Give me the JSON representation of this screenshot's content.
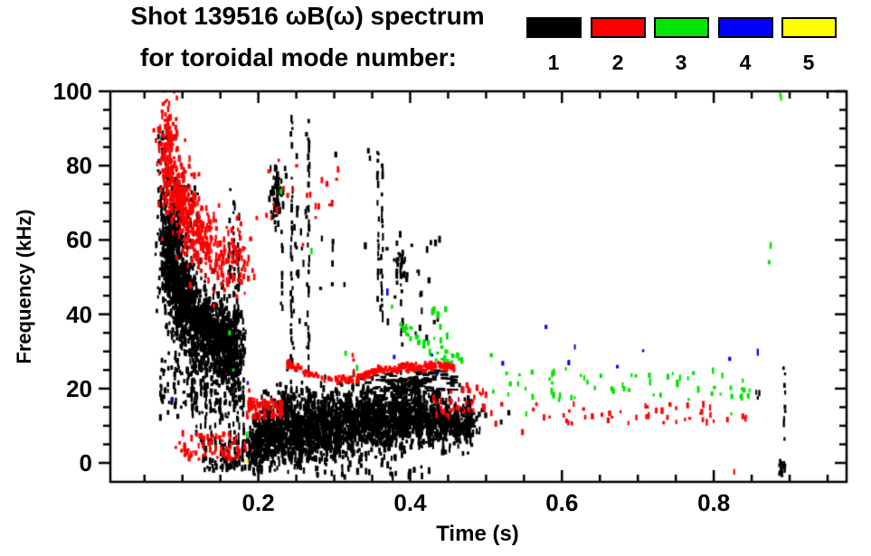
{
  "title": {
    "line1": "Shot 139516 ωB(ω) spectrum",
    "line2": "for toroidal mode number:"
  },
  "legend": {
    "items": [
      {
        "label": "1",
        "color": "#000000"
      },
      {
        "label": "2",
        "color": "#ff0000"
      },
      {
        "label": "3",
        "color": "#00e400"
      },
      {
        "label": "4",
        "color": "#0000ff"
      },
      {
        "label": "5",
        "color": "#ffff00"
      }
    ]
  },
  "axes": {
    "xlabel": "Time (s)",
    "ylabel": "Frequency (kHz)"
  },
  "chart_data": {
    "type": "scatter",
    "title": "Shot 139516 ωB(ω) spectrum for toroidal mode number 1-5",
    "xlabel": "Time (s)",
    "ylabel": "Frequency (kHz)",
    "x_range": [
      0.005,
      0.975
    ],
    "y_range": [
      -5.1,
      100
    ],
    "x_major": [
      {
        "t": 0.2,
        "label": "0.2"
      },
      {
        "t": 0.4,
        "label": "0.4"
      },
      {
        "t": 0.6,
        "label": "0.6"
      },
      {
        "t": 0.8,
        "label": "0.8"
      }
    ],
    "y_major": [
      {
        "f": 0,
        "label": "0"
      },
      {
        "f": 20,
        "label": "20"
      },
      {
        "f": 40,
        "label": "40"
      },
      {
        "f": 60,
        "label": "60"
      },
      {
        "f": 80,
        "label": "80"
      },
      {
        "f": 100,
        "label": "100"
      }
    ],
    "x_minor_step": 0.05,
    "y_minor_step": 5,
    "grid": false,
    "legend_position": "top",
    "series": [
      {
        "mode": 1,
        "color": "#000000",
        "blobs": [
          {
            "t": 0.085,
            "f": 57,
            "st": 0.008,
            "sf": 7.0,
            "n": 420
          },
          {
            "t": 0.1,
            "f": 44,
            "st": 0.01,
            "sf": 6.0,
            "n": 380
          },
          {
            "t": 0.125,
            "f": 37,
            "st": 0.012,
            "sf": 5.5,
            "n": 380
          },
          {
            "t": 0.15,
            "f": 33,
            "st": 0.012,
            "sf": 5.0,
            "n": 300
          },
          {
            "t": 0.165,
            "f": 30,
            "st": 0.008,
            "sf": 6.0,
            "n": 200
          },
          {
            "t": 0.225,
            "f": 72,
            "st": 0.005,
            "sf": 4.0,
            "n": 70
          },
          {
            "t": 0.387,
            "f": 52,
            "st": 0.004,
            "sf": 2.5,
            "n": 25
          },
          {
            "t": 0.197,
            "f": 6.0,
            "st": 0.005,
            "sf": 3.5,
            "n": 140
          },
          {
            "t": 0.214,
            "f": 8.0,
            "st": 0.006,
            "sf": 4.0,
            "n": 170
          },
          {
            "t": 0.232,
            "f": 10.0,
            "st": 0.006,
            "sf": 4.5,
            "n": 190
          },
          {
            "t": 0.25,
            "f": 9.0,
            "st": 0.006,
            "sf": 4.5,
            "n": 180
          },
          {
            "t": 0.268,
            "f": 10.0,
            "st": 0.006,
            "sf": 4.5,
            "n": 180
          },
          {
            "t": 0.286,
            "f": 9.0,
            "st": 0.006,
            "sf": 4.0,
            "n": 170
          },
          {
            "t": 0.304,
            "f": 10.0,
            "st": 0.006,
            "sf": 4.5,
            "n": 180
          },
          {
            "t": 0.322,
            "f": 11.0,
            "st": 0.006,
            "sf": 4.0,
            "n": 170
          },
          {
            "t": 0.34,
            "f": 11.0,
            "st": 0.006,
            "sf": 4.0,
            "n": 170
          },
          {
            "t": 0.358,
            "f": 11.0,
            "st": 0.006,
            "sf": 3.8,
            "n": 160
          },
          {
            "t": 0.376,
            "f": 11.0,
            "st": 0.006,
            "sf": 3.8,
            "n": 160
          },
          {
            "t": 0.394,
            "f": 11.0,
            "st": 0.005,
            "sf": 3.5,
            "n": 150
          },
          {
            "t": 0.411,
            "f": 11.0,
            "st": 0.005,
            "sf": 3.2,
            "n": 140
          },
          {
            "t": 0.428,
            "f": 11.0,
            "st": 0.005,
            "sf": 3.0,
            "n": 130
          },
          {
            "t": 0.445,
            "f": 10.5,
            "st": 0.005,
            "sf": 3.0,
            "n": 130
          },
          {
            "t": 0.461,
            "f": 10.0,
            "st": 0.004,
            "sf": 2.6,
            "n": 110
          },
          {
            "t": 0.476,
            "f": 10.0,
            "st": 0.004,
            "sf": 2.4,
            "n": 100
          }
        ],
        "uniforms": [
          {
            "t0": 0.068,
            "t1": 0.082,
            "f0": 70,
            "f1": 90,
            "n": 35
          },
          {
            "t0": 0.07,
            "t1": 0.12,
            "f0": 58,
            "f1": 75,
            "n": 60
          },
          {
            "t0": 0.07,
            "t1": 0.18,
            "f0": 12,
            "f1": 30,
            "n": 150
          },
          {
            "t0": 0.125,
            "t1": 0.19,
            "f0": -2,
            "f1": 6,
            "n": 90
          },
          {
            "t0": 0.244,
            "t1": 0.27,
            "f0": 30,
            "f1": 90,
            "n": 25
          },
          {
            "t0": 0.28,
            "t1": 0.44,
            "f0": 33,
            "f1": 62,
            "n": 30
          },
          {
            "t0": 0.335,
            "t1": 0.415,
            "f0": 14,
            "f1": 24,
            "n": 110,
            "hdash": true
          },
          {
            "t0": 0.4,
            "t1": 0.46,
            "f0": 19,
            "f1": 25,
            "n": 50,
            "hdash": true
          },
          {
            "t0": 0.21,
            "t1": 0.48,
            "f0": 15,
            "f1": 22,
            "n": 70
          },
          {
            "t0": 0.195,
            "t1": 0.28,
            "f0": -2,
            "f1": 4,
            "n": 60
          },
          {
            "t0": 0.27,
            "t1": 0.43,
            "f0": -4.2,
            "f1": -0.5,
            "n": 28
          },
          {
            "t0": 0.477,
            "t1": 0.5,
            "f0": 8,
            "f1": 15,
            "n": 14
          },
          {
            "t0": 0.886,
            "t1": 0.894,
            "f0": -3.2,
            "f1": 0.2,
            "n": 16
          }
        ],
        "streaks": [
          {
            "t": 0.113,
            "f0": 8,
            "f1": 30
          },
          {
            "t": 0.119,
            "f0": 6,
            "f1": 28
          },
          {
            "t": 0.125,
            "f0": 5,
            "f1": 25
          },
          {
            "t": 0.131,
            "f0": 8,
            "f1": 22
          },
          {
            "t": 0.137,
            "f0": 4,
            "f1": 20
          },
          {
            "t": 0.144,
            "f0": 6,
            "f1": 18
          },
          {
            "t": 0.15,
            "f0": 3,
            "f1": 16
          },
          {
            "t": 0.162,
            "f0": 5,
            "f1": 75
          },
          {
            "t": 0.168,
            "f0": 3,
            "f1": 70
          },
          {
            "t": 0.174,
            "f0": 6,
            "f1": 68
          },
          {
            "t": 0.18,
            "f0": 2,
            "f1": 40
          },
          {
            "t": 0.231,
            "f0": 40,
            "f1": 64
          },
          {
            "t": 0.244,
            "f0": 2,
            "f1": 94
          },
          {
            "t": 0.266,
            "f0": 0,
            "f1": 92
          },
          {
            "t": 0.358,
            "f0": 40,
            "f1": 87
          },
          {
            "t": 0.363,
            "f0": 35,
            "f1": 80
          },
          {
            "t": 0.389,
            "f0": 1,
            "f1": 55
          },
          {
            "t": 0.893,
            "f0": 4,
            "f1": 26
          }
        ],
        "paths": [],
        "points": [
          [
            0.302,
            83
          ],
          [
            0.345,
            84
          ],
          [
            0.347,
            82
          ],
          [
            0.357,
            83.5
          ],
          [
            0.52,
            11
          ],
          [
            0.53,
            13.5
          ],
          [
            0.856,
            19
          ],
          [
            0.858,
            17.5
          ],
          [
            0.86,
            18.8
          ],
          [
            0.892,
            25.5
          ]
        ]
      },
      {
        "mode": 2,
        "color": "#ff0000",
        "blobs": [
          {
            "t": 0.08,
            "f": 84,
            "st": 0.006,
            "sf": 7.0,
            "n": 130
          },
          {
            "t": 0.092,
            "f": 74,
            "st": 0.007,
            "sf": 6.0,
            "n": 120
          },
          {
            "t": 0.105,
            "f": 67,
            "st": 0.008,
            "sf": 5.0,
            "n": 110
          },
          {
            "t": 0.125,
            "f": 60,
            "st": 0.01,
            "sf": 5.0,
            "n": 100
          },
          {
            "t": 0.15,
            "f": 55,
            "st": 0.012,
            "sf": 5.0,
            "n": 70
          },
          {
            "t": 0.175,
            "f": 56,
            "st": 0.01,
            "sf": 5.0,
            "n": 40
          }
        ],
        "uniforms": [
          {
            "t0": 0.09,
            "t1": 0.185,
            "f0": 1,
            "f1": 8,
            "n": 70
          },
          {
            "t0": 0.185,
            "t1": 0.232,
            "f0": 12,
            "f1": 17,
            "n": 80
          },
          {
            "t0": 0.195,
            "t1": 0.31,
            "f0": 55,
            "f1": 82,
            "n": 22
          },
          {
            "t0": 0.43,
            "t1": 0.5,
            "f0": 12,
            "f1": 21,
            "n": 40
          },
          {
            "t0": 0.5,
            "t1": 0.85,
            "f0": 10.5,
            "f1": 16,
            "n": 48
          }
        ],
        "streaks": [
          {
            "t": 0.188,
            "f0": 13,
            "f1": 19.5
          },
          {
            "t": 0.325,
            "f0": 22,
            "f1": 29
          }
        ],
        "paths": [
          {
            "pts": [
              [
                0.238,
                27
              ],
              [
                0.26,
                24.8
              ],
              [
                0.285,
                23
              ],
              [
                0.31,
                22.3
              ],
              [
                0.33,
                22.6
              ],
              [
                0.345,
                24
              ],
              [
                0.36,
                25.3
              ],
              [
                0.38,
                25
              ],
              [
                0.395,
                26
              ],
              [
                0.415,
                25.5
              ],
              [
                0.43,
                26.3
              ],
              [
                0.445,
                26
              ],
              [
                0.458,
                25.7
              ]
            ],
            "thickness": 1.2,
            "n": 220
          }
        ],
        "points": [
          [
            0.507,
            13.4
          ],
          [
            0.548,
            8.3
          ],
          [
            0.827,
            -2.4
          ],
          [
            0.146,
            1.5
          ],
          [
            0.16,
            2.2
          ],
          [
            0.305,
            79
          ]
        ]
      },
      {
        "mode": 3,
        "color": "#00e400",
        "blobs": [],
        "uniforms": [
          {
            "t0": 0.5,
            "t1": 0.845,
            "f0": 17,
            "f1": 25.5,
            "n": 55
          },
          {
            "t0": 0.425,
            "t1": 0.45,
            "f0": 33,
            "f1": 43,
            "n": 10
          },
          {
            "t0": 0.836,
            "t1": 0.848,
            "f0": 16.5,
            "f1": 21,
            "n": 6
          }
        ],
        "streaks": [
          {
            "t": 0.888,
            "f0": 95,
            "f1": 101
          }
        ],
        "paths": [
          {
            "pts": [
              [
                0.376,
                40
              ],
              [
                0.4,
                34.5
              ],
              [
                0.425,
                31
              ],
              [
                0.45,
                29
              ],
              [
                0.474,
                27.5
              ]
            ],
            "thickness": 2.5,
            "n": 40
          }
        ],
        "points": [
          [
            0.162,
            35
          ],
          [
            0.167,
            25
          ],
          [
            0.185,
            7.5
          ],
          [
            0.23,
            73
          ],
          [
            0.27,
            57
          ],
          [
            0.315,
            29.5
          ],
          [
            0.33,
            25.6
          ],
          [
            0.468,
            27.6
          ],
          [
            0.507,
            29
          ],
          [
            0.527,
            24.1
          ],
          [
            0.552,
            20
          ],
          [
            0.553,
            13.2
          ],
          [
            0.823,
            13.2
          ],
          [
            0.873,
            54
          ],
          [
            0.875,
            58.5
          ]
        ]
      },
      {
        "mode": 4,
        "color": "#0000ff",
        "blobs": [],
        "uniforms": [],
        "streaks": [],
        "paths": [],
        "points": [
          [
            0.086,
            17
          ],
          [
            0.186,
            21.5
          ],
          [
            0.37,
            46
          ],
          [
            0.379,
            28.5
          ],
          [
            0.429,
            29
          ],
          [
            0.435,
            23.7
          ],
          [
            0.522,
            26.8
          ],
          [
            0.579,
            36.6
          ],
          [
            0.609,
            27
          ],
          [
            0.617,
            31.2
          ],
          [
            0.673,
            25.9
          ],
          [
            0.707,
            30.2
          ],
          [
            0.821,
            28
          ],
          [
            0.858,
            29.8
          ]
        ]
      },
      {
        "mode": 5,
        "color": "#ffff00",
        "blobs": [],
        "uniforms": [],
        "streaks": [],
        "paths": [],
        "points": [
          [
            0.185,
            0.5
          ]
        ]
      }
    ]
  }
}
